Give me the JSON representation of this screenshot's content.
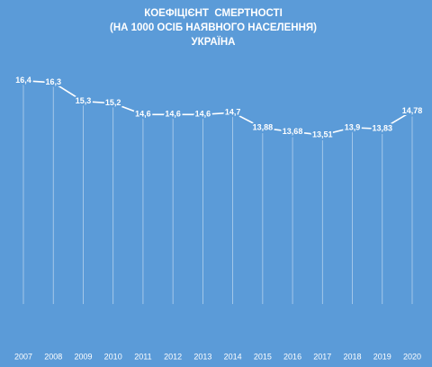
{
  "chart_data": {
    "type": "line",
    "title_lines": [
      "КОЕФІЦІЄНТ  СМЕРТНОСТІ",
      "(НА 1000 ОСІБ НАЯВНОГО НАСЕЛЕННЯ)",
      "УКРАЇНА"
    ],
    "categories": [
      "2007",
      "2008",
      "2009",
      "2010",
      "2011",
      "2012",
      "2013",
      "2014",
      "2015",
      "2016",
      "2017",
      "2018",
      "2019",
      "2020"
    ],
    "values": [
      16.4,
      16.3,
      15.3,
      15.2,
      14.6,
      14.6,
      14.6,
      14.7,
      13.88,
      13.68,
      13.51,
      13.9,
      13.83,
      14.78
    ],
    "value_labels": [
      "16,4",
      "16,3",
      "15,3",
      "15,2",
      "14,6",
      "14,6",
      "14,6",
      "14,7",
      "13,88",
      "13,68",
      "13,51",
      "13,9",
      "13,83",
      "14,78"
    ],
    "color": "#ffffff",
    "ylim": [
      4.5,
      18.4
    ]
  }
}
